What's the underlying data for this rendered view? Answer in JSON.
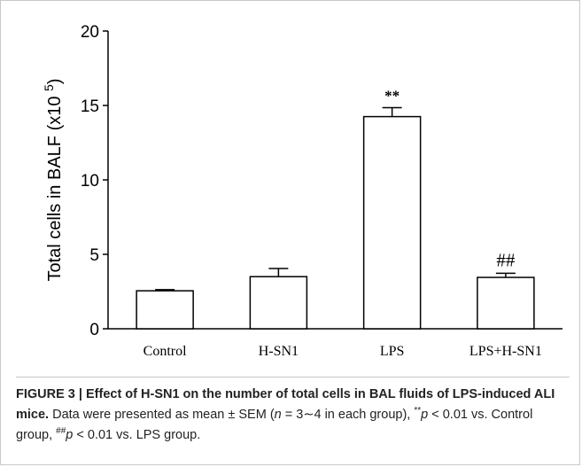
{
  "chart_data": {
    "type": "bar",
    "ylabel_main": "Total cells in BALF (x10",
    "ylabel_exp": "5",
    "ylabel_close": ")",
    "ylim": [
      0,
      20
    ],
    "yticks": [
      "0",
      "5",
      "10",
      "15",
      "20"
    ],
    "categories": [
      "Control",
      "H-SN1",
      "LPS",
      "LPS+H-SN1"
    ],
    "values": [
      2.55,
      3.5,
      14.25,
      3.45
    ],
    "errors": [
      0.08,
      0.55,
      0.6,
      0.28
    ],
    "annotations": [
      "",
      "",
      "**",
      "##"
    ],
    "bar_fill": "#ffffff",
    "bar_stroke": "#000000"
  },
  "caption": {
    "title_bold": "FIGURE 3 | Effect of H-SN1 on the number of total cells in BAL fluids of LPS-induced ALI mice.",
    "t1": " Data were presented as mean ± SEM (",
    "n": "n",
    "t2": " = 3∼4 in each group), ",
    "sup1": "**",
    "p1": "p",
    "t3": " < 0.01 vs. Control group, ",
    "sup2": "##",
    "p2": "p",
    "t4": " < 0.01 vs. LPS group."
  }
}
